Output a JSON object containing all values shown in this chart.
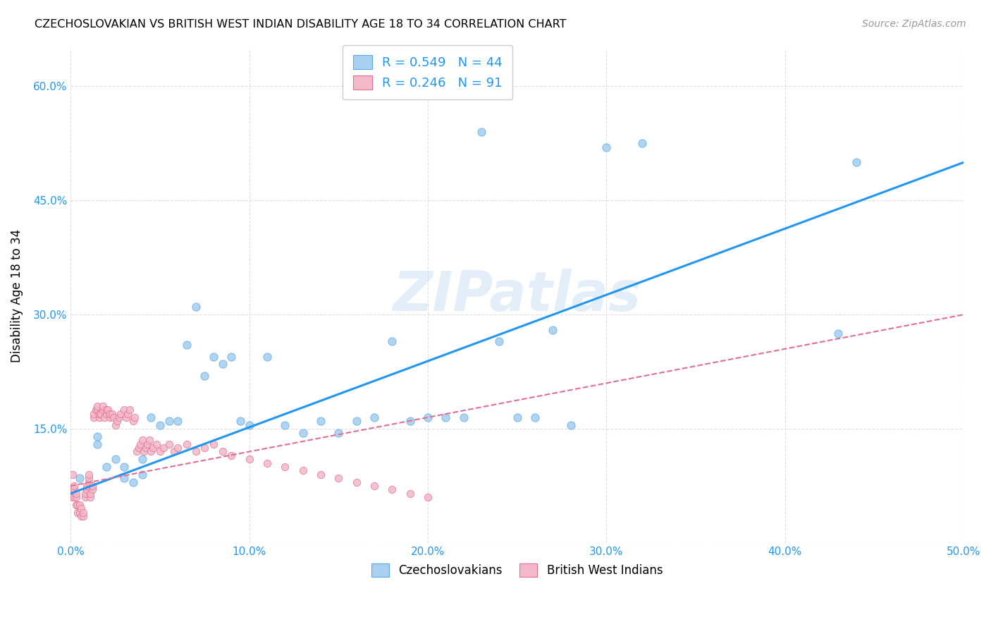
{
  "title": "CZECHOSLOVAKIAN VS BRITISH WEST INDIAN DISABILITY AGE 18 TO 34 CORRELATION CHART",
  "source": "Source: ZipAtlas.com",
  "ylabel": "Disability Age 18 to 34",
  "xlim": [
    0.0,
    0.5
  ],
  "ylim": [
    0.0,
    0.65
  ],
  "xticks": [
    0.0,
    0.1,
    0.2,
    0.3,
    0.4,
    0.5
  ],
  "yticks": [
    0.0,
    0.15,
    0.3,
    0.45,
    0.6
  ],
  "xtick_labels": [
    "0.0%",
    "10.0%",
    "20.0%",
    "30.0%",
    "40.0%",
    "50.0%"
  ],
  "ytick_labels": [
    "",
    "15.0%",
    "30.0%",
    "45.0%",
    "60.0%"
  ],
  "blue_fill": "#a8d0f0",
  "blue_edge": "#5baae8",
  "pink_fill": "#f5b8c8",
  "pink_edge": "#e07090",
  "blue_line_color": "#2196F3",
  "pink_line_color": "#e07090",
  "blue_scatter_x": [
    0.005,
    0.015,
    0.015,
    0.02,
    0.025,
    0.03,
    0.03,
    0.035,
    0.04,
    0.04,
    0.045,
    0.05,
    0.055,
    0.06,
    0.065,
    0.07,
    0.075,
    0.08,
    0.085,
    0.09,
    0.095,
    0.1,
    0.11,
    0.12,
    0.13,
    0.14,
    0.15,
    0.16,
    0.17,
    0.18,
    0.19,
    0.2,
    0.21,
    0.22,
    0.23,
    0.24,
    0.25,
    0.26,
    0.27,
    0.28,
    0.3,
    0.32,
    0.43,
    0.44
  ],
  "blue_scatter_y": [
    0.085,
    0.13,
    0.14,
    0.1,
    0.11,
    0.085,
    0.1,
    0.08,
    0.09,
    0.11,
    0.165,
    0.155,
    0.16,
    0.16,
    0.26,
    0.31,
    0.22,
    0.245,
    0.235,
    0.245,
    0.16,
    0.155,
    0.245,
    0.155,
    0.145,
    0.16,
    0.145,
    0.16,
    0.165,
    0.265,
    0.16,
    0.165,
    0.165,
    0.165,
    0.54,
    0.265,
    0.165,
    0.165,
    0.28,
    0.155,
    0.52,
    0.525,
    0.275,
    0.5
  ],
  "pink_scatter_x": [
    0.001,
    0.001,
    0.001,
    0.002,
    0.002,
    0.002,
    0.003,
    0.003,
    0.003,
    0.004,
    0.004,
    0.005,
    0.005,
    0.006,
    0.006,
    0.007,
    0.007,
    0.008,
    0.008,
    0.009,
    0.009,
    0.01,
    0.01,
    0.01,
    0.011,
    0.011,
    0.012,
    0.012,
    0.013,
    0.013,
    0.014,
    0.015,
    0.015,
    0.016,
    0.016,
    0.017,
    0.018,
    0.018,
    0.019,
    0.02,
    0.02,
    0.021,
    0.022,
    0.022,
    0.023,
    0.024,
    0.025,
    0.026,
    0.027,
    0.028,
    0.03,
    0.031,
    0.032,
    0.033,
    0.035,
    0.036,
    0.037,
    0.038,
    0.039,
    0.04,
    0.041,
    0.042,
    0.043,
    0.044,
    0.045,
    0.046,
    0.048,
    0.05,
    0.052,
    0.055,
    0.058,
    0.06,
    0.065,
    0.07,
    0.075,
    0.08,
    0.085,
    0.09,
    0.1,
    0.11,
    0.12,
    0.13,
    0.14,
    0.15,
    0.16,
    0.17,
    0.18,
    0.19,
    0.2
  ],
  "pink_scatter_y": [
    0.06,
    0.07,
    0.09,
    0.06,
    0.07,
    0.075,
    0.05,
    0.06,
    0.065,
    0.04,
    0.05,
    0.04,
    0.05,
    0.035,
    0.045,
    0.035,
    0.04,
    0.06,
    0.065,
    0.07,
    0.075,
    0.08,
    0.085,
    0.09,
    0.06,
    0.065,
    0.07,
    0.075,
    0.165,
    0.17,
    0.175,
    0.175,
    0.18,
    0.165,
    0.17,
    0.17,
    0.175,
    0.18,
    0.165,
    0.17,
    0.175,
    0.175,
    0.165,
    0.17,
    0.17,
    0.165,
    0.155,
    0.16,
    0.165,
    0.17,
    0.175,
    0.165,
    0.17,
    0.175,
    0.16,
    0.165,
    0.12,
    0.125,
    0.13,
    0.135,
    0.12,
    0.125,
    0.13,
    0.135,
    0.12,
    0.125,
    0.13,
    0.12,
    0.125,
    0.13,
    0.12,
    0.125,
    0.13,
    0.12,
    0.125,
    0.13,
    0.12,
    0.115,
    0.11,
    0.105,
    0.1,
    0.095,
    0.09,
    0.085,
    0.08,
    0.075,
    0.07,
    0.065,
    0.06
  ],
  "blue_trend_x": [
    0.0,
    0.5
  ],
  "blue_trend_y": [
    0.065,
    0.5
  ],
  "pink_trend_x": [
    0.0,
    0.5
  ],
  "pink_trend_y": [
    0.075,
    0.3
  ],
  "watermark": "ZIPatlas",
  "background_color": "#ffffff",
  "grid_color": "#cccccc"
}
